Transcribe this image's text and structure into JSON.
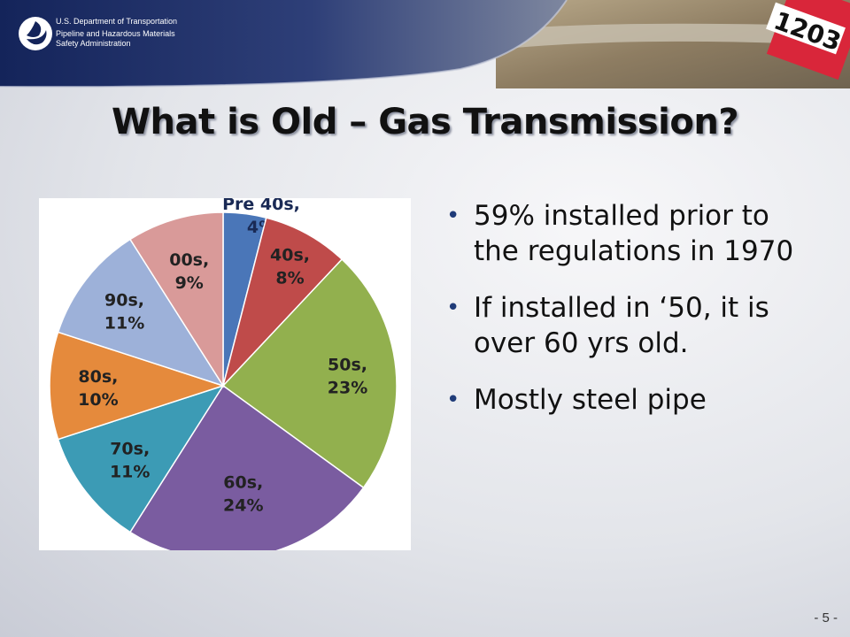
{
  "header": {
    "agency_line1": "U.S. Department of Transportation",
    "agency_line2": "Pipeline and Hazardous Materials",
    "agency_line3": "Safety Administration",
    "placard_text": "1203"
  },
  "title": "What is Old – Gas Transmission?",
  "bullets": [
    "59% installed prior to the regulations in 1970",
    "If installed in ‘50, it is over 60 yrs old.",
    "Mostly steel pipe"
  ],
  "page_number": "- 5 -",
  "chart_data": {
    "type": "pie",
    "categories": [
      "Pre 40s",
      "40s",
      "50s",
      "60s",
      "70s",
      "80s",
      "90s",
      "00s"
    ],
    "values": [
      4,
      8,
      23,
      24,
      11,
      10,
      11,
      9
    ],
    "labels": [
      "Pre 40s,",
      "40s,",
      "50s,",
      "60s,",
      "70s,",
      "80s,",
      "90s,",
      "00s,"
    ],
    "value_labels": [
      "4%",
      "8%",
      "23%",
      "24%",
      "11%",
      "10%",
      "11%",
      "9%"
    ],
    "colors": [
      "#4a76b8",
      "#bf4b4a",
      "#92b04e",
      "#7a5ca0",
      "#3c9bb5",
      "#e58a3c",
      "#9db1d9",
      "#d99a99"
    ],
    "start": "12 o'clock",
    "direction": "clockwise"
  }
}
